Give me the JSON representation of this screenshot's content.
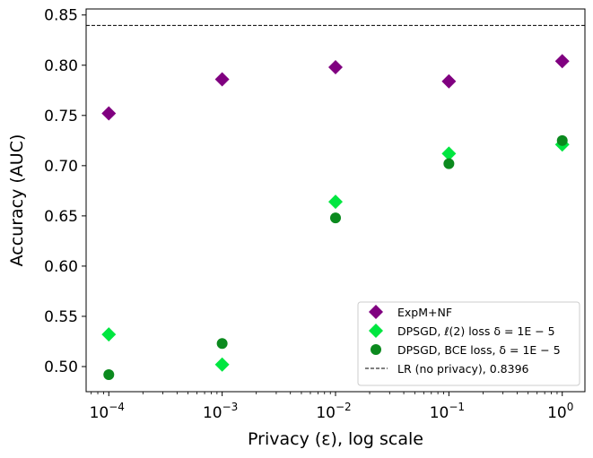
{
  "chart_data": {
    "type": "scatter",
    "title": "",
    "xlabel": "Privacy (ε), log scale",
    "ylabel": "Accuracy (AUC)",
    "xscale": "log",
    "xlim_log10": [
      -4.2,
      0.2
    ],
    "ylim": [
      0.475,
      0.856
    ],
    "x_ticks": [
      {
        "value": 0.0001,
        "base": "10",
        "exp": "−4"
      },
      {
        "value": 0.001,
        "base": "10",
        "exp": "−3"
      },
      {
        "value": 0.01,
        "base": "10",
        "exp": "−2"
      },
      {
        "value": 0.1,
        "base": "10",
        "exp": "−1"
      },
      {
        "value": 1,
        "base": "10",
        "exp": "0"
      }
    ],
    "y_ticks": [
      {
        "value": 0.5,
        "label": "0.50"
      },
      {
        "value": 0.55,
        "label": "0.55"
      },
      {
        "value": 0.6,
        "label": "0.60"
      },
      {
        "value": 0.65,
        "label": "0.65"
      },
      {
        "value": 0.7,
        "label": "0.70"
      },
      {
        "value": 0.75,
        "label": "0.75"
      },
      {
        "value": 0.8,
        "label": "0.80"
      },
      {
        "value": 0.85,
        "label": "0.85"
      }
    ],
    "x": [
      0.0001,
      0.001,
      0.01,
      0.1,
      1
    ],
    "series": [
      {
        "name": "ExpM+NF",
        "marker": "diamond",
        "color": "#800080",
        "values": [
          0.752,
          0.786,
          0.798,
          0.784,
          0.804
        ]
      },
      {
        "name": "DPSGD, ℓ(2) loss δ = 1E − 5",
        "marker": "diamond",
        "color": "#00e640",
        "values": [
          0.532,
          0.502,
          0.664,
          0.712,
          0.721
        ]
      },
      {
        "name": "DPSGD, BCE loss, δ = 1E − 5",
        "marker": "circle",
        "color": "#0b8a1e",
        "values": [
          0.492,
          0.523,
          0.648,
          0.702,
          0.725
        ]
      }
    ],
    "reference_line": {
      "name": "LR (no privacy), 0.8396",
      "value": 0.8396,
      "style": "dashed",
      "color": "#000000"
    },
    "legend_position": "lower-right"
  }
}
